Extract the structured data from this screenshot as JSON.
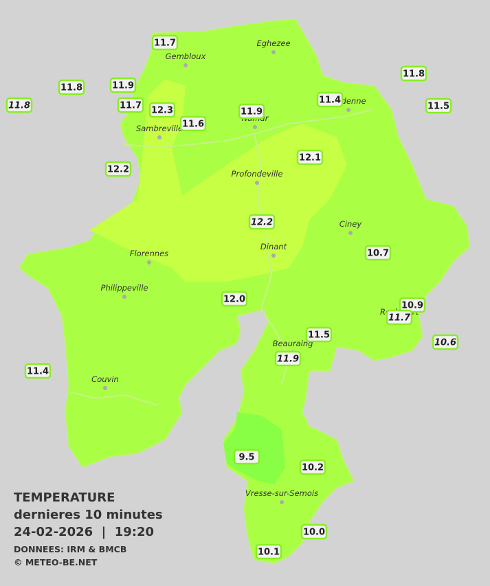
{
  "legend": {
    "title": "TEMPERATURE",
    "subtitle": "dernieres 10 minutes",
    "datetime": "24-02-2026  |  19:20",
    "source": "DONNEES: IRM & BMCB",
    "copyright": "© METEO-BE.NET"
  },
  "towns": [
    "Eghezee",
    "Gembloux",
    "Andenne",
    "Namur",
    "Sambreville",
    "Profondeville",
    "Ciney",
    "Dinant",
    "Florennes",
    "Philippeville",
    "Rochefort",
    "Beauraing",
    "Couvin",
    "Vresse-sur-Semois"
  ],
  "temperatures": [
    "11.7",
    "11.9",
    "11.8",
    "11.8",
    "11.7",
    "12.3",
    "11.6",
    "11.9",
    "11.4",
    "11.8",
    "11.5",
    "12.2",
    "12.1",
    "12.2",
    "10.7",
    "12.0",
    "10.9",
    "11.7",
    "11.5",
    "11.9",
    "10.6",
    "11.4",
    "9.5",
    "10.2",
    "10.0",
    "10.1"
  ]
}
